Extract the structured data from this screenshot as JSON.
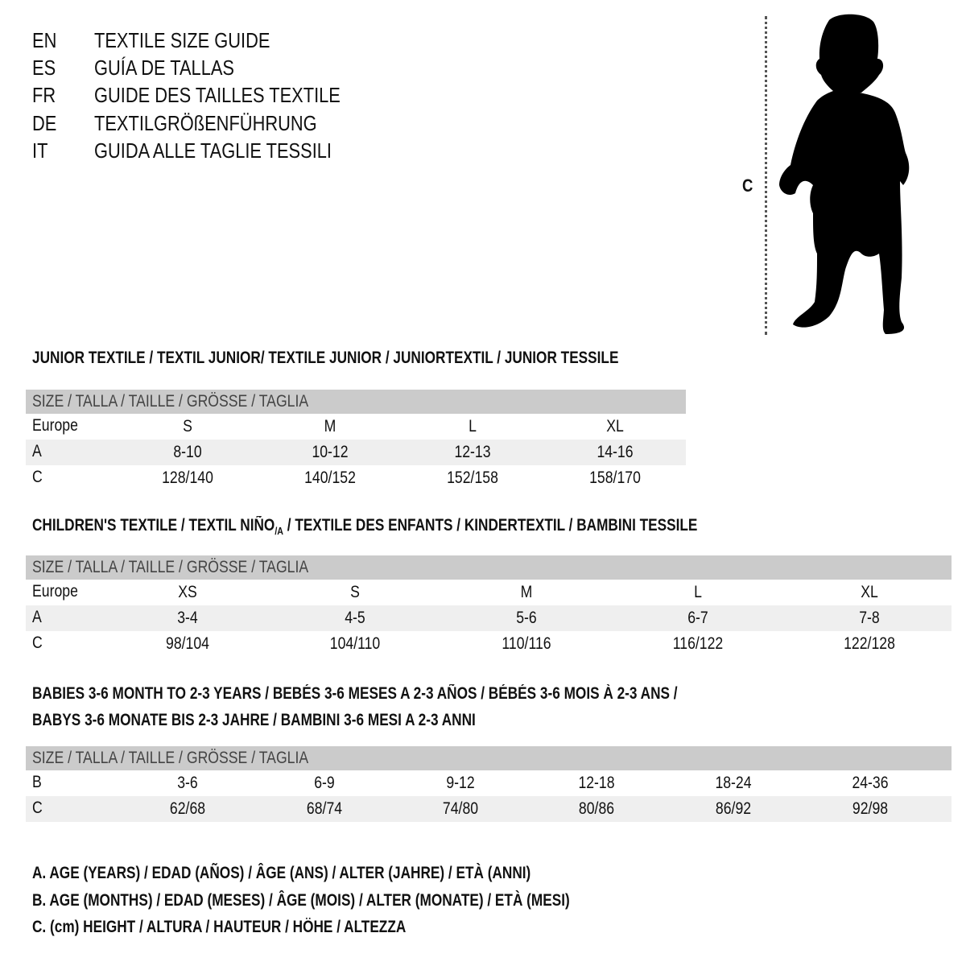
{
  "languages": [
    {
      "code": "EN",
      "title": "TEXTILE SIZE GUIDE"
    },
    {
      "code": "ES",
      "title": "GUÍA DE TALLAS"
    },
    {
      "code": "FR",
      "title": "GUIDE DES TAILLES TEXTILE"
    },
    {
      "code": "DE",
      "title": "TEXTILGRÖßENFÜHRUNG"
    },
    {
      "code": "IT",
      "title": "GUIDA ALLE TAGLIE TESSILI"
    }
  ],
  "figure": {
    "height_label": "C",
    "icon": "child-silhouette"
  },
  "junior": {
    "title": "JUNIOR TEXTILE / TEXTIL JUNIOR/ TEXTILE JUNIOR / JUNIORTEXTIL / JUNIOR TESSILE",
    "header": "SIZE / TALLA / TAILLE / GRÖSSE / TAGLIA",
    "rows": [
      {
        "label": "Europe",
        "values": [
          "S",
          "M",
          "L",
          "XL"
        ]
      },
      {
        "label": "A",
        "values": [
          "8-10",
          "10-12",
          "12-13",
          "14-16"
        ]
      },
      {
        "label": "C",
        "values": [
          "128/140",
          "140/152",
          "152/158",
          "158/170"
        ]
      }
    ]
  },
  "children": {
    "title_pre": "CHILDREN'S TEXTILE / TEXTIL NIÑO",
    "title_sub": "/A",
    "title_post": " / TEXTILE DES ENFANTS / KINDERTEXTIL / BAMBINI TESSILE",
    "header": "SIZE / TALLA / TAILLE / GRÖSSE / TAGLIA",
    "rows": [
      {
        "label": "Europe",
        "values": [
          "XS",
          "S",
          "M",
          "L",
          "XL"
        ]
      },
      {
        "label": "A",
        "values": [
          "3-4",
          "4-5",
          "5-6",
          "6-7",
          "7-8"
        ]
      },
      {
        "label": "C",
        "values": [
          "98/104",
          "104/110",
          "110/116",
          "116/122",
          "122/128"
        ]
      }
    ]
  },
  "babies": {
    "title_line1": "BABIES 3-6 MONTH TO 2-3 YEARS / BEBÉS 3-6 MESES A 2-3 AÑOS / BÉBÉS 3-6 MOIS À 2-3 ANS /",
    "title_line2": "BABYS 3-6 MONATE BIS 2-3 JAHRE / BAMBINI 3-6 MESI A 2-3 ANNI",
    "header": "SIZE / TALLA / TAILLE / GRÖSSE / TAGLIA",
    "rows": [
      {
        "label": "B",
        "values": [
          "3-6",
          "6-9",
          "9-12",
          "12-18",
          "18-24",
          "24-36"
        ]
      },
      {
        "label": "C",
        "values": [
          "62/68",
          "68/74",
          "74/80",
          "80/86",
          "86/92",
          "92/98"
        ]
      }
    ]
  },
  "legend": [
    "A. AGE (YEARS) / EDAD (AÑOS) / ÂGE (ANS) / ALTER (JAHRE) / ETÀ (ANNI)",
    "B. AGE (MONTHS) / EDAD (MESES) / ÂGE (MOIS) / ALTER (MONATE) / ETÀ (MESI)",
    "C. (cm) HEIGHT / ALTURA / HAUTEUR / HÖHE / ALTEZZA"
  ],
  "colors": {
    "header_bg": "#cbcbcb",
    "shade_bg": "#efefef",
    "text": "#111111"
  }
}
